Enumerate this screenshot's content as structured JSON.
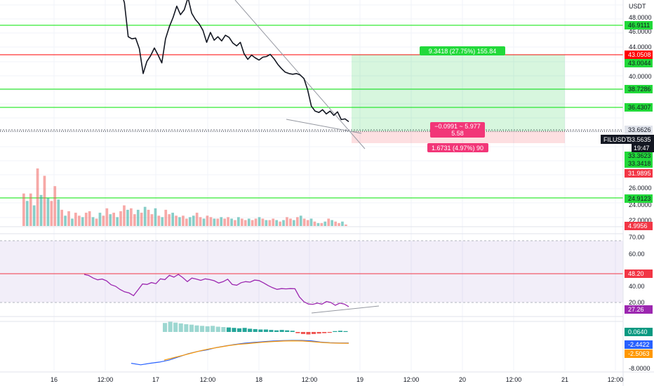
{
  "chart_data": {
    "type": "line",
    "symbol": "FILUSDT",
    "quote_currency": "USDT",
    "current_price": "33.5635",
    "countdown": "19:47",
    "price_axis": {
      "ticks": [
        "48.0000",
        "46.0000",
        "44.0000",
        "40.0000",
        "38.0000",
        "26.0000",
        "24.0000",
        "22.0000"
      ],
      "range": [
        22,
        50
      ]
    },
    "time_axis": {
      "ticks": [
        "16",
        "12:00",
        "17",
        "12:00",
        "18",
        "12:00",
        "19",
        "12:00",
        "20",
        "12:00",
        "21",
        "12:00"
      ]
    },
    "horizontal_levels": [
      {
        "value": 46.9111,
        "label": "46.9111",
        "color": "#00e600"
      },
      {
        "value": 43.0508,
        "label": "43.0508",
        "color": "#ff0000"
      },
      {
        "value": 43.0044,
        "label": "43.0044",
        "color": "#00e600"
      },
      {
        "value": 38.7286,
        "label": "38.7286",
        "color": "#00e600"
      },
      {
        "value": 36.4307,
        "label": "36.4307",
        "color": "#00e600"
      },
      {
        "value": 33.6626,
        "label": "33.6626",
        "color": "#787b86"
      },
      {
        "value": 33.3623,
        "label": "33.3623",
        "color": "#00e600"
      },
      {
        "value": 33.3418,
        "label": "33.3418",
        "color": "#00e600"
      },
      {
        "value": 31.9895,
        "label": "31.9895",
        "color": "#f23645"
      },
      {
        "value": 24.9123,
        "label": "24.9123",
        "color": "#00e600"
      },
      {
        "value": 22.0,
        "label": "4.9956",
        "color": "#f23645"
      }
    ],
    "price_series": [
      52,
      50.3,
      45.5,
      45.2,
      45.3,
      43.8,
      40.3,
      42.0,
      42.8,
      43.9,
      42.9,
      41.8,
      45.2,
      46.9,
      48.2,
      49.8,
      48.6,
      49.3,
      51.0,
      48.8,
      47.9,
      47.3,
      46.4,
      44.7,
      46.1,
      45.0,
      45.5,
      44.9,
      45.7,
      45.4,
      44.6,
      44.2,
      44.7,
      43.1,
      42.3,
      42.9,
      42.5,
      42.2,
      42.6,
      42.7,
      43.0,
      42.4,
      41.6,
      41.0,
      40.5,
      40.3,
      40.2,
      40.3,
      40.1,
      39.6,
      38.0,
      35.7,
      35.0,
      34.8,
      35.2,
      34.6,
      35.0,
      34.4,
      34.9,
      33.8,
      33.9,
      33.5
    ],
    "trade_box": {
      "profit_label": "9.3418 (27.75%) 155.84",
      "entry_label": "−0.0991 ~ 5.977",
      "entry_sub_label": "5.58",
      "loss_label": "1.6731 (4.97%) 90",
      "target": 43.0044,
      "entry": 33.6626,
      "stop": 31.9895
    },
    "volume": [
      22,
      17,
      22,
      14,
      39,
      21,
      34,
      19,
      17,
      27,
      18,
      11,
      7,
      10,
      5,
      9,
      7,
      6,
      9,
      10,
      6,
      5,
      9,
      7,
      12,
      8,
      9,
      6,
      10,
      14,
      11,
      12,
      8,
      11,
      9,
      13,
      11,
      8,
      12,
      7,
      6,
      11,
      8,
      9,
      7,
      6,
      7,
      5,
      6,
      7,
      9,
      6,
      5,
      7,
      6,
      5,
      5,
      6,
      5,
      6,
      5,
      4,
      6,
      5,
      4,
      5,
      4,
      5,
      6,
      5,
      4,
      4,
      5,
      4,
      3,
      4,
      6,
      5,
      4,
      6,
      7,
      5,
      4,
      5,
      3,
      2,
      2,
      3,
      5,
      4,
      3,
      2,
      3,
      1
    ],
    "volume_up": [
      false,
      true,
      false,
      true,
      false,
      true,
      false,
      true,
      false,
      false,
      true,
      false,
      true,
      false,
      true,
      false,
      false,
      true,
      false,
      false,
      true,
      false,
      true,
      false,
      false,
      true,
      false,
      true,
      false,
      false,
      true,
      false,
      false,
      true,
      false,
      true,
      false,
      false,
      true,
      false,
      true,
      false,
      false,
      true,
      false,
      true,
      false,
      false,
      true,
      true,
      false,
      false,
      true,
      false,
      false,
      true,
      false,
      true,
      false,
      false,
      true,
      false,
      true,
      false,
      false,
      true,
      false,
      false,
      true,
      false,
      true,
      false,
      false,
      true,
      false,
      true,
      false,
      false,
      true,
      false,
      true,
      false,
      false,
      true,
      false,
      true,
      false,
      true,
      false,
      true,
      false,
      false,
      true,
      false
    ],
    "rsi": {
      "axis_ticks": [
        "70.00",
        "60.00",
        "40.00",
        "20.00"
      ],
      "range": [
        14,
        74
      ],
      "upper_band": 70,
      "lower_band": 30,
      "level_label": "48.20",
      "level": 48.2,
      "current_label": "27.26",
      "current": 27.26,
      "values": [
        48.2,
        47.5,
        45.8,
        44.7,
        45.2,
        44.0,
        41.5,
        40.5,
        38.4,
        36.9,
        36.2,
        34.4,
        38.2,
        42.0,
        41.7,
        42.9,
        42.2,
        45.3,
        44.8,
        47.6,
        46.4,
        48.2,
        46.1,
        43.5,
        45.8,
        45.2,
        44.3,
        45.3,
        44.8,
        44.1,
        42.6,
        43.5,
        45.1,
        41.7,
        41.2,
        42.8,
        43.5,
        43.2,
        44.5,
        44.2,
        42.7,
        41.0,
        39.6,
        38.5,
        39.0,
        38.8,
        39.0,
        38.9,
        33.6,
        30.5,
        29.0,
        28.8,
        29.6,
        28.9,
        30.6,
        30.0,
        28.2,
        29.6,
        29.0,
        27.3
      ]
    },
    "macd": {
      "axis_tick": "-8.0000",
      "values": [
        {
          "label": "0.0640",
          "color": "#089981"
        },
        {
          "label": "-2.4422",
          "color": "#2962ff"
        },
        {
          "label": "-2.5063",
          "color": "#ff9800"
        }
      ],
      "histogram": [
        2.2,
        2.5,
        2.3,
        2.1,
        1.9,
        1.8,
        1.6,
        1.5,
        1.4,
        1.5,
        1.3,
        1.2,
        1.1,
        1.0,
        0.9,
        1.0,
        0.8,
        0.7,
        0.6,
        0.6,
        0.5,
        0.4,
        0.5,
        0.4,
        0.3,
        -0.3,
        -0.5,
        -0.6,
        -0.5,
        -0.4,
        -0.3,
        -0.2,
        0.2,
        0.3,
        0.2
      ],
      "macd_line": [
        -7.6,
        -8.0,
        -7.6,
        -7.3,
        -6.8,
        -6.0,
        -5.2,
        -4.6,
        -4.2,
        -3.6,
        -3.2,
        -2.8,
        -2.5,
        -2.3,
        -2.1,
        -1.95,
        -1.85,
        -1.8,
        -1.8,
        -1.9,
        -2.2,
        -2.4,
        -2.45,
        -2.44
      ],
      "signal_line": [
        -6.8,
        -6.2,
        -5.6,
        -5.0,
        -4.4,
        -3.9,
        -3.5,
        -3.1,
        -2.8,
        -2.6,
        -2.4,
        -2.2,
        -2.05,
        -1.95,
        -1.9,
        -1.95,
        -2.1,
        -2.3,
        -2.45,
        -2.5,
        -2.51
      ]
    }
  }
}
